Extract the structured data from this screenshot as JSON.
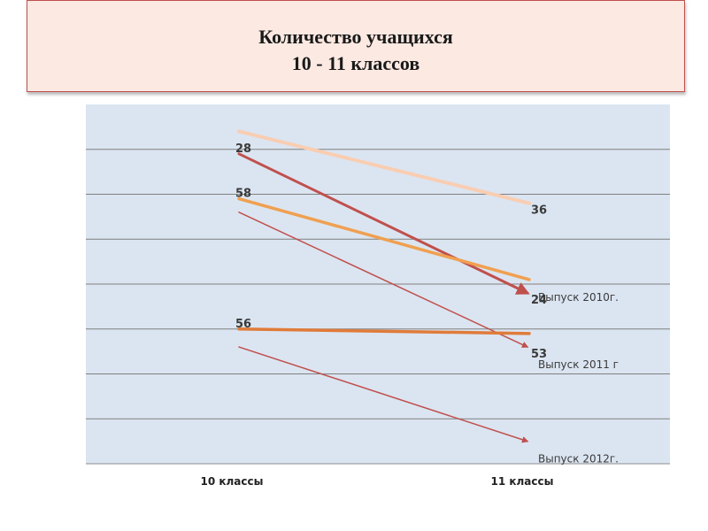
{
  "chart_data": {
    "type": "line",
    "title": "Количество учащихся\n10 - 11 классов",
    "title_lines": [
      "Количество учащихся",
      "10 - 11 классов"
    ],
    "categories": [
      "10 классы",
      "11 классы"
    ],
    "grid": true,
    "series": [
      {
        "name": "",
        "label_first": "",
        "label_last": "36",
        "color": "#f9cdb2",
        "width": 4,
        "arrow": false,
        "values": [
          74,
          58
        ]
      },
      {
        "name": "",
        "label_first": "28",
        "label_last": "24",
        "color": "#c0504d",
        "width": 3,
        "arrow": true,
        "values": [
          69,
          38
        ]
      },
      {
        "name": "Выпуск 2010г.",
        "label_first": "58",
        "label_last": "",
        "color": "#f0a050",
        "width": 3.5,
        "arrow": false,
        "values": [
          59,
          41
        ]
      },
      {
        "name": "Выпуск 2011 г",
        "label_first": "",
        "label_last": "53",
        "color": "#c0504d",
        "width": 1.5,
        "arrow": true,
        "values": [
          56,
          26
        ]
      },
      {
        "name": "",
        "label_first": "56",
        "label_last": "",
        "color": "#e07b39",
        "width": 3.5,
        "arrow": false,
        "values": [
          30,
          29
        ]
      },
      {
        "name": "Выпуск 2012г.",
        "label_first": "",
        "label_last": "",
        "color": "#c0504d",
        "width": 1.5,
        "arrow": true,
        "values": [
          26,
          5
        ]
      }
    ],
    "ylim": [
      0,
      80
    ]
  }
}
